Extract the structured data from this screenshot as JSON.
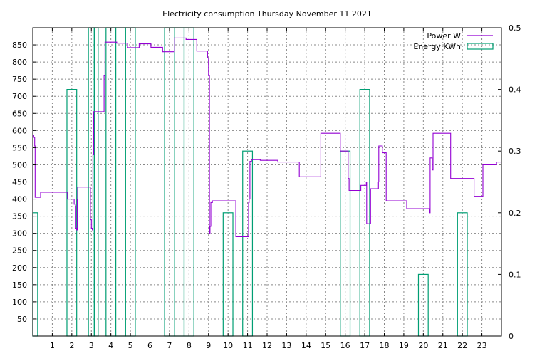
{
  "chart_data": {
    "type": "line",
    "title": "Electricity consumption Thursday November 11 2021",
    "xlabel": "",
    "ylabel": "",
    "y2label": "",
    "xlim": [
      0,
      24
    ],
    "ylim": [
      0,
      900
    ],
    "y2lim": [
      0,
      0.5
    ],
    "xticks": [
      "1",
      "2",
      "3",
      "4",
      "5",
      "6",
      "7",
      "8",
      "9",
      "10",
      "11",
      "12",
      "13",
      "14",
      "15",
      "16",
      "17",
      "18",
      "19",
      "20",
      "21",
      "22",
      "23"
    ],
    "yticks": [
      "50",
      "100",
      "150",
      "200",
      "250",
      "300",
      "350",
      "400",
      "450",
      "500",
      "550",
      "600",
      "650",
      "700",
      "750",
      "800",
      "850"
    ],
    "y2ticks": [
      "0",
      "0.1",
      "0.2",
      "0.3",
      "0.4",
      "0.5"
    ],
    "grid": true,
    "legend_position": "top-right",
    "colors": {
      "power": "#9400D3",
      "energy": "#009E73"
    },
    "series": [
      {
        "name": "Power W",
        "axis": "left",
        "style": "step",
        "points": [
          [
            0.0,
            585
          ],
          [
            0.05,
            580
          ],
          [
            0.1,
            555
          ],
          [
            0.12,
            405
          ],
          [
            0.35,
            405
          ],
          [
            0.4,
            420
          ],
          [
            1.2,
            420
          ],
          [
            1.75,
            420
          ],
          [
            1.78,
            400
          ],
          [
            2.1,
            400
          ],
          [
            2.12,
            385
          ],
          [
            2.18,
            380
          ],
          [
            2.2,
            315
          ],
          [
            2.25,
            310
          ],
          [
            2.28,
            400
          ],
          [
            2.3,
            435
          ],
          [
            2.9,
            435
          ],
          [
            2.95,
            340
          ],
          [
            3.0,
            315
          ],
          [
            3.05,
            310
          ],
          [
            3.08,
            530
          ],
          [
            3.12,
            655
          ],
          [
            3.6,
            655
          ],
          [
            3.65,
            760
          ],
          [
            3.7,
            858
          ],
          [
            4.0,
            858
          ],
          [
            4.3,
            855
          ],
          [
            4.8,
            855
          ],
          [
            4.85,
            842
          ],
          [
            5.4,
            842
          ],
          [
            5.45,
            853
          ],
          [
            6.0,
            853
          ],
          [
            6.05,
            843
          ],
          [
            6.6,
            843
          ],
          [
            6.65,
            830
          ],
          [
            7.2,
            830
          ],
          [
            7.25,
            870
          ],
          [
            7.8,
            870
          ],
          [
            7.85,
            866
          ],
          [
            8.35,
            866
          ],
          [
            8.4,
            832
          ],
          [
            8.9,
            832
          ],
          [
            8.95,
            812
          ],
          [
            9.0,
            760
          ],
          [
            9.05,
            300
          ],
          [
            9.08,
            320
          ],
          [
            9.12,
            390
          ],
          [
            9.2,
            395
          ],
          [
            10.35,
            395
          ],
          [
            10.4,
            290
          ],
          [
            11.0,
            290
          ],
          [
            11.05,
            390
          ],
          [
            11.08,
            400
          ],
          [
            11.12,
            510
          ],
          [
            11.2,
            515
          ],
          [
            11.6,
            515
          ],
          [
            11.65,
            513
          ],
          [
            12.5,
            513
          ],
          [
            12.55,
            508
          ],
          [
            13.6,
            508
          ],
          [
            13.65,
            465
          ],
          [
            14.7,
            465
          ],
          [
            14.75,
            592
          ],
          [
            15.7,
            592
          ],
          [
            15.75,
            540
          ],
          [
            16.1,
            540
          ],
          [
            16.15,
            460
          ],
          [
            16.2,
            425
          ],
          [
            16.75,
            425
          ],
          [
            16.8,
            440
          ],
          [
            17.05,
            440
          ],
          [
            17.08,
            450
          ],
          [
            17.1,
            328
          ],
          [
            17.28,
            328
          ],
          [
            17.3,
            430
          ],
          [
            17.65,
            430
          ],
          [
            17.7,
            450
          ],
          [
            17.72,
            555
          ],
          [
            17.85,
            555
          ],
          [
            17.9,
            535
          ],
          [
            18.05,
            535
          ],
          [
            18.1,
            395
          ],
          [
            19.1,
            395
          ],
          [
            19.15,
            372
          ],
          [
            20.3,
            372
          ],
          [
            20.32,
            360
          ],
          [
            20.35,
            520
          ],
          [
            20.42,
            520
          ],
          [
            20.45,
            485
          ],
          [
            20.5,
            592
          ],
          [
            21.35,
            592
          ],
          [
            21.4,
            460
          ],
          [
            22.55,
            460
          ],
          [
            22.6,
            408
          ],
          [
            23.0,
            408
          ],
          [
            23.05,
            500
          ],
          [
            23.7,
            500
          ],
          [
            23.75,
            508
          ],
          [
            24.0,
            508
          ]
        ]
      },
      {
        "name": "Energy KWh",
        "axis": "right",
        "style": "boxes",
        "bars": [
          [
            -0.25,
            0.25,
            0.2
          ],
          [
            1.75,
            2.25,
            0.4
          ],
          [
            2.85,
            3.15,
            0.5
          ],
          [
            3.15,
            3.35,
            0.5
          ],
          [
            3.75,
            4.25,
            0.5
          ],
          [
            4.25,
            4.75,
            0.5
          ],
          [
            4.75,
            5.25,
            0.5
          ],
          [
            6.75,
            7.25,
            0.5
          ],
          [
            7.25,
            7.75,
            0.5
          ],
          [
            7.75,
            8.25,
            0.5
          ],
          [
            9.75,
            10.25,
            0.2
          ],
          [
            10.75,
            11.25,
            0.3
          ],
          [
            15.75,
            16.25,
            0.3
          ],
          [
            16.75,
            17.25,
            0.4
          ],
          [
            19.75,
            20.25,
            0.1
          ],
          [
            21.75,
            22.25,
            0.2
          ]
        ]
      }
    ]
  }
}
